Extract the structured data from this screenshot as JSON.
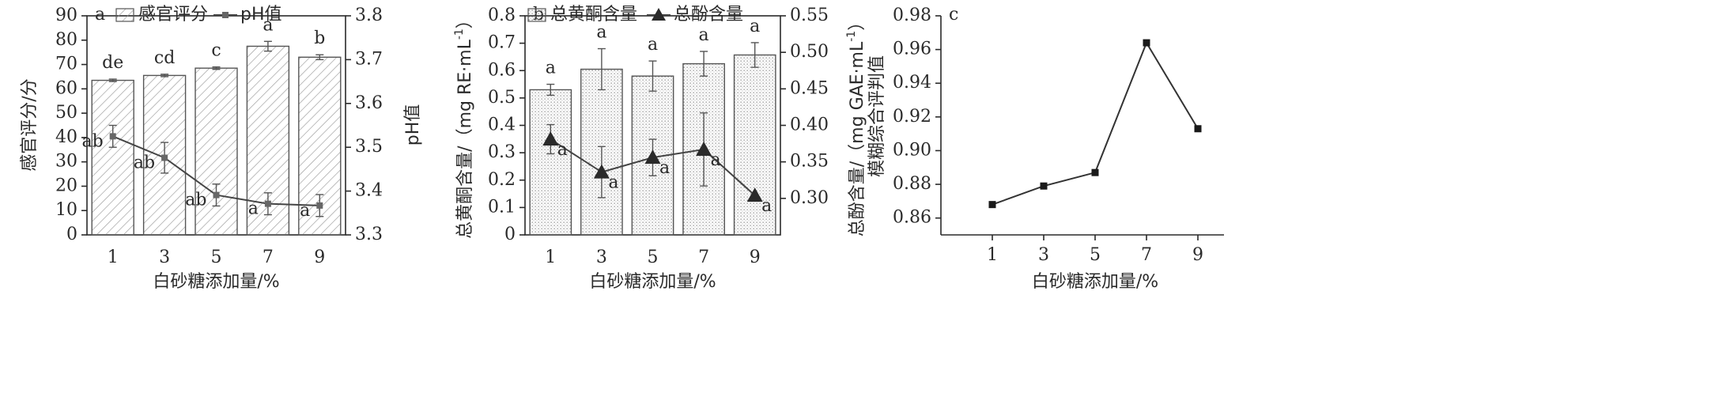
{
  "chart_data": [
    {
      "type": "bar",
      "panel_label": "a",
      "categories": [
        "1",
        "3",
        "5",
        "7",
        "9"
      ],
      "xlabel": "白砂糖添加量/%",
      "ylabel": "感官评分/分",
      "y2label": "pH值",
      "ylim": [
        0,
        90
      ],
      "y_ticks": [
        "0",
        "10",
        "20",
        "30",
        "40",
        "50",
        "60",
        "70",
        "80",
        "90"
      ],
      "y2lim": [
        3.3,
        3.8
      ],
      "y2_ticks": [
        "3.3",
        "3.4",
        "3.5",
        "3.6",
        "3.7",
        "3.8"
      ],
      "legend": "top",
      "grid": false,
      "series": [
        {
          "name": "感官评分",
          "kind": "bar",
          "axis": "left",
          "values": [
            63.5,
            65.5,
            68.5,
            77.5,
            73
          ],
          "errors": [
            0.5,
            0.5,
            0.5,
            2,
            1
          ],
          "letters": [
            "de",
            "cd",
            "c",
            "a",
            "b"
          ],
          "pattern": "diagonal"
        },
        {
          "name": "pH值",
          "kind": "line",
          "axis": "right",
          "values": [
            3.525,
            3.476,
            3.391,
            3.371,
            3.367
          ],
          "errors": [
            0.025,
            0.035,
            0.025,
            0.025,
            0.025
          ],
          "letters": [
            "ab",
            "ab",
            "ab",
            "a",
            "a"
          ],
          "marker": "square-small"
        }
      ]
    },
    {
      "type": "bar",
      "panel_label": "b",
      "categories": [
        "1",
        "3",
        "5",
        "7",
        "9"
      ],
      "xlabel": "白砂糖添加量/%",
      "ylabel": "总黄酮含量/（mg RE·mL",
      "ylabel_sup": "-1",
      "ylabel_tail": "）",
      "y2label": "总酚含量/（mg GAE·mL",
      "y2label_sup": "-1",
      "y2label_tail": "）",
      "ylim": [
        0,
        0.8
      ],
      "y_ticks": [
        "0",
        "0.1",
        "0.2",
        "0.3",
        "0.4",
        "0.5",
        "0.6",
        "0.7",
        "0.8"
      ],
      "y2lim": [
        0.25,
        0.55
      ],
      "y2_ticks": [
        "0.30",
        "0.35",
        "0.40",
        "0.45",
        "0.50",
        "0.55"
      ],
      "legend": "top",
      "grid": false,
      "series": [
        {
          "name": "总黄酮含量",
          "kind": "bar",
          "axis": "left",
          "values": [
            0.53,
            0.605,
            0.58,
            0.625,
            0.657
          ],
          "errors": [
            0.02,
            0.075,
            0.055,
            0.045,
            0.045
          ],
          "letters": [
            "a",
            "a",
            "a",
            "a",
            "a"
          ],
          "pattern": "dots"
        },
        {
          "name": "总酚含量",
          "kind": "line",
          "axis": "right",
          "values": [
            0.381,
            0.336,
            0.356,
            0.367,
            0.304
          ],
          "errors": [
            0.02,
            0.035,
            0.025,
            0.05,
            0
          ],
          "letters": [
            "a",
            "a",
            "a",
            "a",
            "a"
          ],
          "marker": "triangle"
        }
      ]
    },
    {
      "type": "line",
      "panel_label": "c",
      "x": [
        "1",
        "3",
        "5",
        "7",
        "9"
      ],
      "xlabel": "白砂糖添加量/%",
      "ylabel": "模糊综合评判值",
      "ylim": [
        0.85,
        0.98
      ],
      "y_ticks": [
        "0.86",
        "0.88",
        "0.90",
        "0.92",
        "0.94",
        "0.96",
        "0.98"
      ],
      "grid": false,
      "series": [
        {
          "values": [
            0.868,
            0.879,
            0.887,
            0.964,
            0.913
          ],
          "marker": "square"
        }
      ]
    }
  ],
  "colors": {
    "axis": "#2a2a2a",
    "bar_edge": "#555555",
    "bar_fill": "#ffffff",
    "hatch": "#9a9a9a",
    "dots": "#8a8a8a",
    "line": "#444444",
    "marker": "#2a2a2a"
  }
}
